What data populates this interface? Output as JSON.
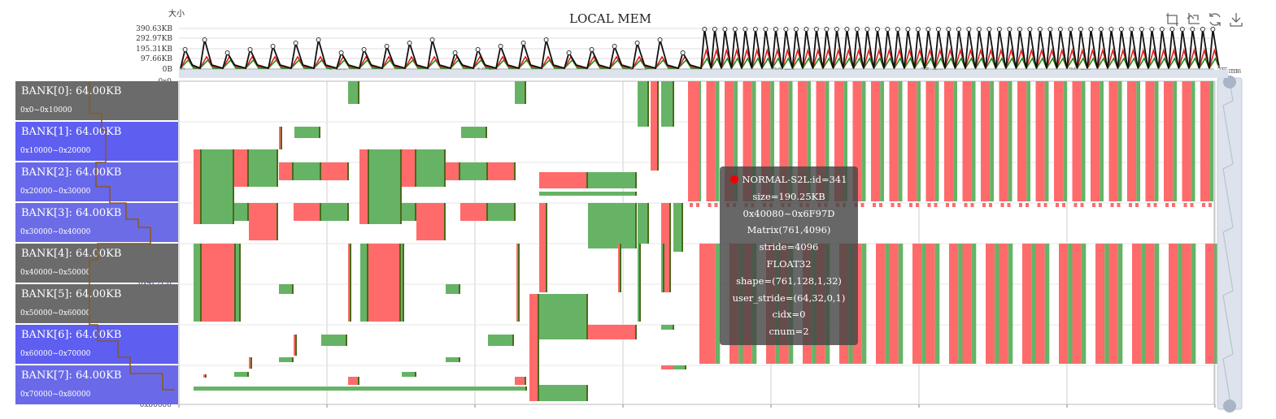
{
  "chart_data": {
    "type": "timeline",
    "title": "LOCAL MEM",
    "ylabel": "大小",
    "xlabel_unit": "ms",
    "x_ticks": [
      "0",
      "5 ms",
      "10 ms",
      "15 ms",
      "20 ms",
      "25 ms",
      "30 ms",
      "35 ms"
    ],
    "x_max_label": "35 ms",
    "top_y_ticks": [
      "390.63KB",
      "292.97KB",
      "195.31KB",
      "97.66KB",
      "0B"
    ],
    "address_labels": [
      "0x0",
      "0x5EE0",
      "0x1E580",
      "0x36C20",
      "0x4F2C0",
      "0x67960",
      "0x80000"
    ],
    "banks": [
      {
        "name": "BANK[0]: 64.00KB",
        "range": "0x0~0x10000",
        "color": "#6b6b6b"
      },
      {
        "name": "BANK[1]: 64.00KB",
        "range": "0x10000~0x20000",
        "color": "#5e5ef0"
      },
      {
        "name": "BANK[2]: 64.00KB",
        "range": "0x20000~0x30000",
        "color": "#6868ea"
      },
      {
        "name": "BANK[3]: 64.00KB",
        "range": "0x30000~0x40000",
        "color": "#6c6ce6"
      },
      {
        "name": "BANK[4]: 64.00KB",
        "range": "0x40000~0x50000",
        "color": "#6b6b6b"
      },
      {
        "name": "BANK[5]: 64.00KB",
        "range": "0x50000~0x60000",
        "color": "#6b6b6b"
      },
      {
        "name": "BANK[6]: 64.00KB",
        "range": "0x60000~0x70000",
        "color": "#5e5ef0"
      },
      {
        "name": "BANK[7]: 64.00KB",
        "range": "0x70000~0x80000",
        "color": "#6a6ae8"
      }
    ],
    "series_colors": {
      "load": "#ff6b6b",
      "store": "#66b366",
      "edge": "#4a6a1a",
      "total": "#111111",
      "red_line": "#e02020",
      "green_line": "#1a8a1a"
    },
    "tooltip": [
      "NORMAL-S2L:id=341",
      "size=190.25KB",
      "0x40080~0x6F97D",
      "Matrix(761,4096)",
      "stride=4096",
      "FLOAT32",
      "shape=(761,128,1,32)",
      "user_stride=(64,32,0,1)",
      "cidx=0",
      "cnum=2"
    ],
    "toolbox": [
      "zoom-icon",
      "zoom-reset-icon",
      "restore-icon",
      "download-icon"
    ]
  }
}
